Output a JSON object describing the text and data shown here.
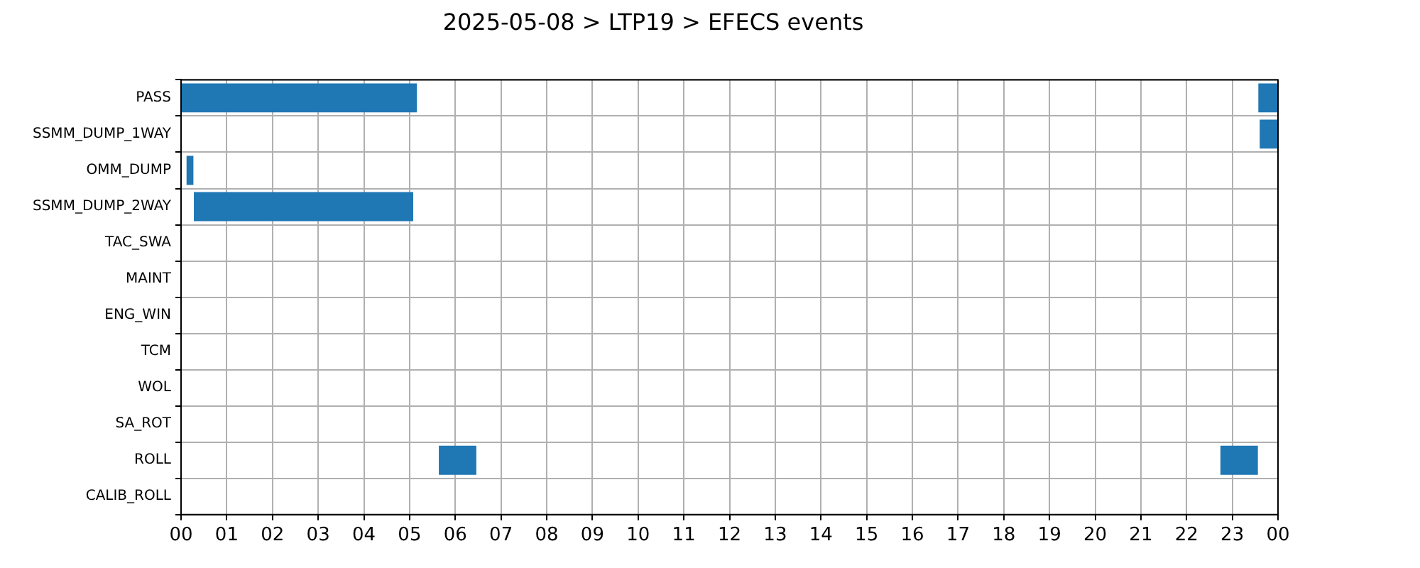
{
  "chart_data": {
    "type": "bar",
    "orientation": "horizontal",
    "title": "2025-05-08 > LTP19 > EFECS events",
    "categories": [
      "PASS",
      "SSMM_DUMP_1WAY",
      "OMM_DUMP",
      "SSMM_DUMP_2WAY",
      "TAC_SWA",
      "MAINT",
      "ENG_WIN",
      "TCM",
      "WOL",
      "SA_ROT",
      "ROLL",
      "CALIB_ROLL"
    ],
    "series": [
      {
        "color": "#1f77b4",
        "base": [
          0,
          null,
          0.12,
          0.28,
          null,
          null,
          null,
          null,
          null,
          null,
          5.64,
          null
        ],
        "values": [
          5.16,
          null,
          0.15,
          4.8,
          null,
          null,
          null,
          null,
          null,
          null,
          0.82,
          null
        ]
      },
      {
        "color": "#1f77b4",
        "base": [
          23.57,
          23.6,
          null,
          null,
          null,
          null,
          null,
          null,
          null,
          null,
          22.74,
          null
        ],
        "values": [
          0.43,
          0.4,
          null,
          null,
          null,
          null,
          null,
          null,
          null,
          null,
          0.82,
          null
        ]
      }
    ],
    "xlim": [
      0,
      24
    ],
    "xticks": [
      {
        "value": 0,
        "label": "00"
      },
      {
        "value": 1,
        "label": "01"
      },
      {
        "value": 2,
        "label": "02"
      },
      {
        "value": 3,
        "label": "03"
      },
      {
        "value": 4,
        "label": "04"
      },
      {
        "value": 5,
        "label": "05"
      },
      {
        "value": 6,
        "label": "06"
      },
      {
        "value": 7,
        "label": "07"
      },
      {
        "value": 8,
        "label": "08"
      },
      {
        "value": 9,
        "label": "09"
      },
      {
        "value": 10,
        "label": "10"
      },
      {
        "value": 11,
        "label": "11"
      },
      {
        "value": 12,
        "label": "12"
      },
      {
        "value": 13,
        "label": "13"
      },
      {
        "value": 14,
        "label": "14"
      },
      {
        "value": 15,
        "label": "15"
      },
      {
        "value": 16,
        "label": "16"
      },
      {
        "value": 17,
        "label": "17"
      },
      {
        "value": 18,
        "label": "18"
      },
      {
        "value": 19,
        "label": "19"
      },
      {
        "value": 20,
        "label": "20"
      },
      {
        "value": 21,
        "label": "21"
      },
      {
        "value": 22,
        "label": "22"
      },
      {
        "value": 23,
        "label": "23"
      },
      {
        "value": 24,
        "label": "00"
      }
    ],
    "grid": true,
    "legend": false
  }
}
